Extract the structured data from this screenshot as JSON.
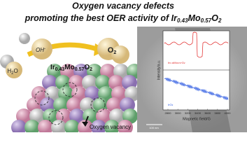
{
  "header": {
    "line1": "Oxygen vacancy defects",
    "line2": {
      "text": "promoting the best OER activity of ",
      "formula": [
        "Ir",
        "0.43",
        "Mo",
        "0.57",
        "O",
        "2"
      ]
    }
  },
  "left": {
    "catalyst": [
      "Ir",
      "0.43",
      "Mo",
      "0.57",
      "O",
      "2"
    ],
    "oh": [
      "OH",
      "-"
    ],
    "water": [
      "H",
      "2",
      "O"
    ],
    "oxygen": [
      "O",
      "2"
    ],
    "vacancy": "Oxygen vacancy"
  },
  "right": {
    "y_label": "Intensity/a.u.",
    "x_label": "Magnetic field/G",
    "x_ticks": [
      "2800",
      "3000",
      "3200",
      "3400",
      "3600",
      "3800",
      "4000"
    ],
    "legend_red": [
      "Ir",
      "0.43",
      "Mo",
      "0.57",
      "O",
      "2"
    ],
    "legend_blue": [
      "IrO",
      "2"
    ],
    "scale_bar": "100 nm"
  }
}
